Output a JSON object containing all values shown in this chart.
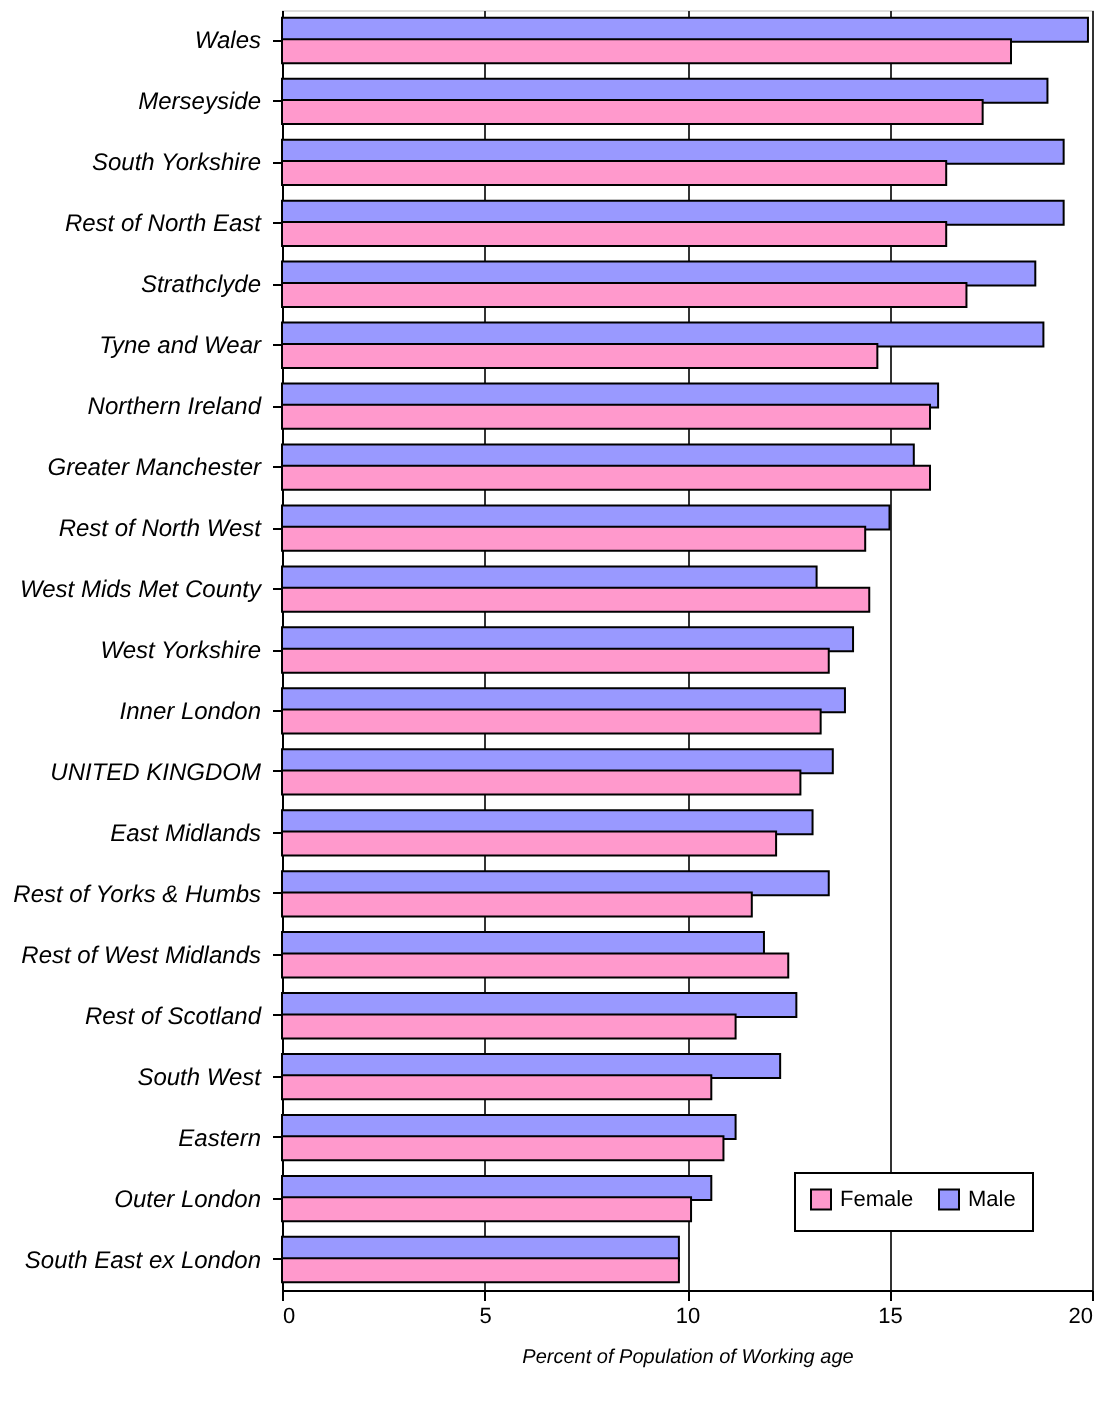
{
  "chart_data": {
    "type": "bar",
    "orientation": "horizontal",
    "xlabel": "Percent of Population of Working age",
    "categories": [
      "Wales",
      "Merseyside",
      "South Yorkshire",
      "Rest of North East",
      "Strathclyde",
      "Tyne and Wear",
      "Northern Ireland",
      "Greater Manchester",
      "Rest of North West",
      "West Mids Met County",
      "West Yorkshire",
      "Inner London",
      "UNITED KINGDOM",
      "East Midlands",
      "Rest of Yorks & Humbs",
      "Rest of West Midlands",
      "Rest of Scotland",
      "South West",
      "Eastern",
      "Outer London",
      "South East ex London"
    ],
    "series": [
      {
        "name": "Male",
        "color": "#9999ff",
        "values": [
          19.9,
          18.9,
          19.3,
          19.3,
          18.6,
          18.8,
          16.2,
          15.6,
          15.0,
          13.2,
          14.1,
          13.9,
          13.6,
          13.1,
          13.5,
          11.9,
          12.7,
          12.3,
          11.2,
          10.6,
          9.8
        ]
      },
      {
        "name": "Female",
        "color": "#ff99cc",
        "values": [
          18.0,
          17.3,
          16.4,
          16.4,
          16.9,
          14.7,
          16.0,
          16.0,
          14.4,
          14.5,
          13.5,
          13.3,
          12.8,
          12.2,
          11.6,
          12.5,
          11.2,
          10.6,
          10.9,
          10.1,
          9.8
        ]
      }
    ],
    "xlim": [
      0,
      20
    ],
    "xticks": [
      0,
      5,
      10,
      15,
      20
    ],
    "grid": "x",
    "legend": "bottom right"
  }
}
